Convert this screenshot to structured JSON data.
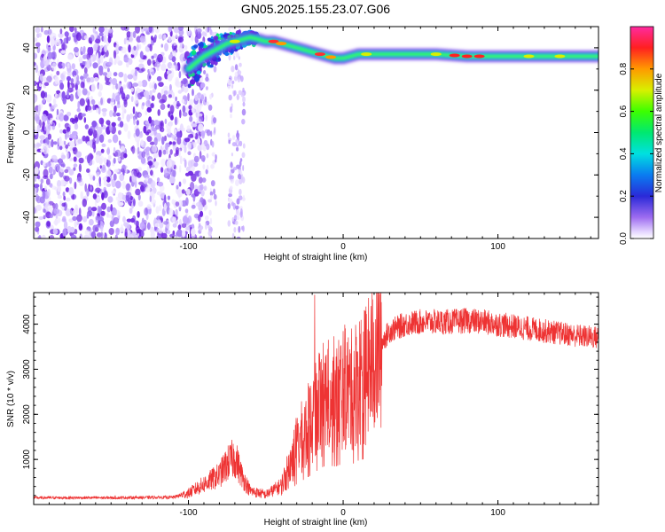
{
  "title": "GN05.2025.155.23.07.G06",
  "chart_data": [
    {
      "type": "heatmap",
      "xlabel": "Height of straight line (km)",
      "ylabel": "Frequency (Hz)",
      "xlim": [
        -200,
        165
      ],
      "ylim": [
        -50,
        50
      ],
      "xticks": [
        -100,
        0,
        100
      ],
      "yticks": [
        -40,
        -20,
        0,
        20,
        40
      ],
      "colorbar": {
        "label": "Normalized spectral amplitude",
        "range": [
          0.0,
          1.0
        ],
        "ticks": [
          0.0,
          0.2,
          0.4,
          0.6,
          0.8
        ]
      },
      "ridge": [
        {
          "x": -100,
          "y": 30
        },
        {
          "x": -95,
          "y": 33
        },
        {
          "x": -90,
          "y": 36
        },
        {
          "x": -85,
          "y": 38
        },
        {
          "x": -80,
          "y": 40
        },
        {
          "x": -75,
          "y": 42
        },
        {
          "x": -70,
          "y": 43
        },
        {
          "x": -65,
          "y": 44
        },
        {
          "x": -60,
          "y": 45
        },
        {
          "x": -55,
          "y": 44
        },
        {
          "x": -50,
          "y": 43
        },
        {
          "x": -45,
          "y": 43
        },
        {
          "x": -40,
          "y": 42
        },
        {
          "x": -35,
          "y": 41
        },
        {
          "x": -30,
          "y": 40
        },
        {
          "x": -25,
          "y": 39
        },
        {
          "x": -20,
          "y": 38
        },
        {
          "x": -15,
          "y": 37
        },
        {
          "x": -10,
          "y": 36
        },
        {
          "x": -5,
          "y": 35
        },
        {
          "x": 0,
          "y": 35
        },
        {
          "x": 10,
          "y": 37
        },
        {
          "x": 20,
          "y": 37
        },
        {
          "x": 40,
          "y": 37
        },
        {
          "x": 60,
          "y": 37
        },
        {
          "x": 80,
          "y": 36
        },
        {
          "x": 100,
          "y": 36
        },
        {
          "x": 120,
          "y": 36
        },
        {
          "x": 140,
          "y": 36
        },
        {
          "x": 165,
          "y": 36
        }
      ]
    },
    {
      "type": "line",
      "xlabel": "Height of straight line (km)",
      "ylabel": "SNR (10 * v/v)",
      "xlim": [
        -200,
        165
      ],
      "ylim": [
        0,
        4700
      ],
      "xticks": [
        -100,
        0,
        100
      ],
      "yticks": [
        1000,
        2000,
        3000,
        4000
      ],
      "series_color": "#ee3333",
      "envelope": [
        {
          "x": -200,
          "y": 150
        },
        {
          "x": -150,
          "y": 150
        },
        {
          "x": -110,
          "y": 160
        },
        {
          "x": -100,
          "y": 250
        },
        {
          "x": -90,
          "y": 450
        },
        {
          "x": -80,
          "y": 650
        },
        {
          "x": -75,
          "y": 900
        },
        {
          "x": -70,
          "y": 1050
        },
        {
          "x": -65,
          "y": 600
        },
        {
          "x": -60,
          "y": 300
        },
        {
          "x": -50,
          "y": 220
        },
        {
          "x": -40,
          "y": 420
        },
        {
          "x": -35,
          "y": 800
        },
        {
          "x": -30,
          "y": 1300
        },
        {
          "x": -25,
          "y": 1600
        },
        {
          "x": -20,
          "y": 1900
        },
        {
          "x": -15,
          "y": 2300
        },
        {
          "x": -10,
          "y": 2500
        },
        {
          "x": -5,
          "y": 2400
        },
        {
          "x": 0,
          "y": 2600
        },
        {
          "x": 5,
          "y": 2500
        },
        {
          "x": 10,
          "y": 2800
        },
        {
          "x": 15,
          "y": 2900
        },
        {
          "x": 20,
          "y": 3200
        },
        {
          "x": 25,
          "y": 3600
        },
        {
          "x": 30,
          "y": 3850
        },
        {
          "x": 40,
          "y": 4000
        },
        {
          "x": 50,
          "y": 4050
        },
        {
          "x": 60,
          "y": 4050
        },
        {
          "x": 70,
          "y": 4050
        },
        {
          "x": 80,
          "y": 4080
        },
        {
          "x": 90,
          "y": 4050
        },
        {
          "x": 100,
          "y": 4000
        },
        {
          "x": 110,
          "y": 3950
        },
        {
          "x": 120,
          "y": 3900
        },
        {
          "x": 130,
          "y": 3850
        },
        {
          "x": 140,
          "y": 3800
        },
        {
          "x": 150,
          "y": 3750
        },
        {
          "x": 165,
          "y": 3700
        }
      ]
    }
  ]
}
